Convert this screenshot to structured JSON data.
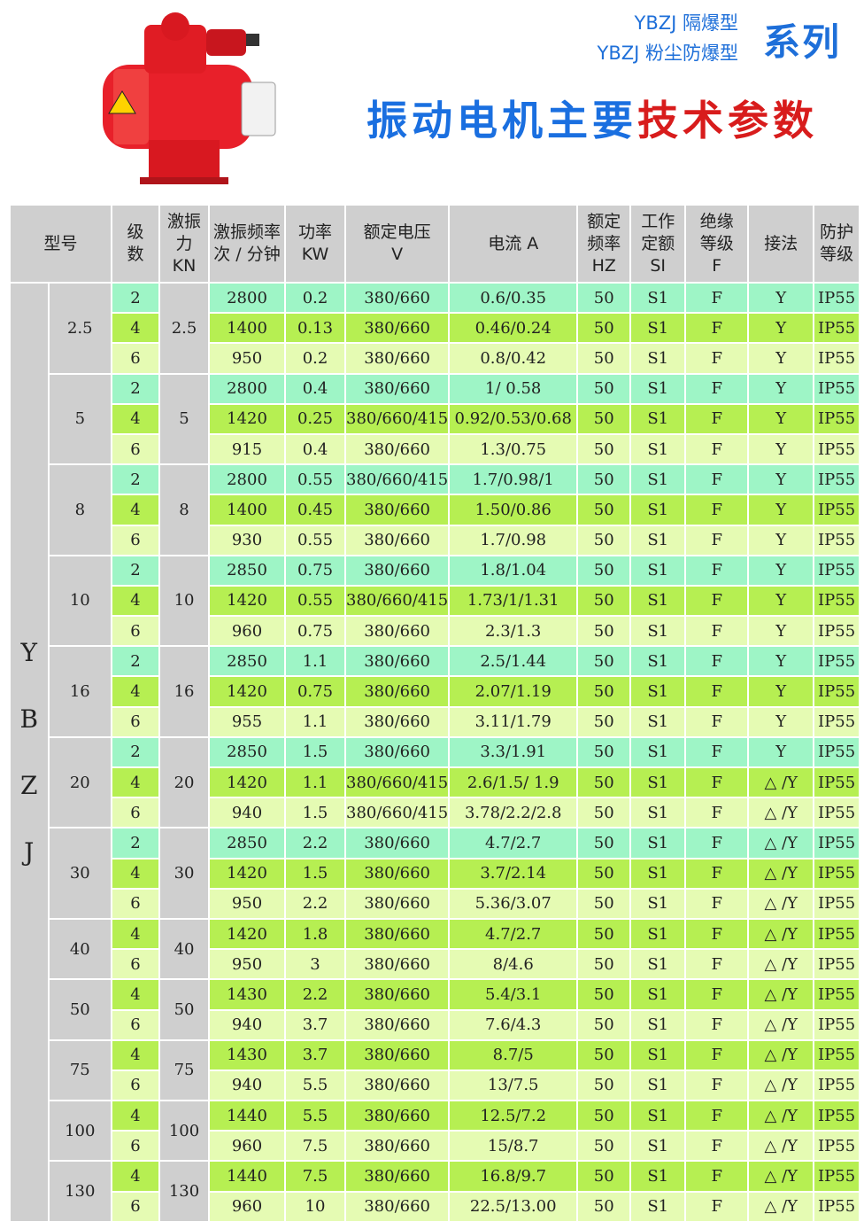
{
  "header": {
    "subtitle_1": "YBZJ 隔爆型",
    "subtitle_2": "YBZJ 粉尘防爆型",
    "series": "系列",
    "title_blue": "振动电机主要",
    "title_red": "技术参数"
  },
  "colors": {
    "blue": "#1a6fe0",
    "red": "#d81c1c",
    "pole2": "#9ef5c6",
    "pole4": "#b6ef52",
    "pole6": "#e5fbb3",
    "header": "#cfcfcf"
  },
  "table": {
    "columns": [
      "型号",
      "级\n数",
      "激振\n力\nKN",
      "激振频率\n次 / 分钟",
      "功率\nKW",
      "额定电压\nV",
      "电流 A",
      "额定\n频率\nHZ",
      "工作\n定额\nSI",
      "绝缘\n等级\nF",
      "接法",
      "防护\n等级"
    ],
    "model_letters": [
      "Y",
      "B",
      "Z",
      "J"
    ],
    "groups": [
      {
        "size": "2.5",
        "force": "2.5",
        "rows": [
          [
            "2",
            "2800",
            "0.2",
            "380/660",
            "0.6/0.35",
            "50",
            "S1",
            "F",
            "Y",
            "IP55"
          ],
          [
            "4",
            "1400",
            "0.13",
            "380/660",
            "0.46/0.24",
            "50",
            "S1",
            "F",
            "Y",
            "IP55"
          ],
          [
            "6",
            "950",
            "0.2",
            "380/660",
            "0.8/0.42",
            "50",
            "S1",
            "F",
            "Y",
            "IP55"
          ]
        ]
      },
      {
        "size": "5",
        "force": "5",
        "rows": [
          [
            "2",
            "2800",
            "0.4",
            "380/660",
            "1/ 0.58",
            "50",
            "S1",
            "F",
            "Y",
            "IP55"
          ],
          [
            "4",
            "1420",
            "0.25",
            "380/660/415",
            "0.92/0.53/0.68",
            "50",
            "S1",
            "F",
            "Y",
            "IP55"
          ],
          [
            "6",
            "915",
            "0.4",
            "380/660",
            "1.3/0.75",
            "50",
            "S1",
            "F",
            "Y",
            "IP55"
          ]
        ]
      },
      {
        "size": "8",
        "force": "8",
        "rows": [
          [
            "2",
            "2800",
            "0.55",
            "380/660/415",
            "1.7/0.98/1",
            "50",
            "S1",
            "F",
            "Y",
            "IP55"
          ],
          [
            "4",
            "1400",
            "0.45",
            "380/660",
            "1.50/0.86",
            "50",
            "S1",
            "F",
            "Y",
            "IP55"
          ],
          [
            "6",
            "930",
            "0.55",
            "380/660",
            "1.7/0.98",
            "50",
            "S1",
            "F",
            "Y",
            "IP55"
          ]
        ]
      },
      {
        "size": "10",
        "force": "10",
        "rows": [
          [
            "2",
            "2850",
            "0.75",
            "380/660",
            "1.8/1.04",
            "50",
            "S1",
            "F",
            "Y",
            "IP55"
          ],
          [
            "4",
            "1420",
            "0.55",
            "380/660/415",
            "1.73/1/1.31",
            "50",
            "S1",
            "F",
            "Y",
            "IP55"
          ],
          [
            "6",
            "960",
            "0.75",
            "380/660",
            "2.3/1.3",
            "50",
            "S1",
            "F",
            "Y",
            "IP55"
          ]
        ]
      },
      {
        "size": "16",
        "force": "16",
        "rows": [
          [
            "2",
            "2850",
            "1.1",
            "380/660",
            "2.5/1.44",
            "50",
            "S1",
            "F",
            "Y",
            "IP55"
          ],
          [
            "4",
            "1420",
            "0.75",
            "380/660",
            "2.07/1.19",
            "50",
            "S1",
            "F",
            "Y",
            "IP55"
          ],
          [
            "6",
            "955",
            "1.1",
            "380/660",
            "3.11/1.79",
            "50",
            "S1",
            "F",
            "Y",
            "IP55"
          ]
        ]
      },
      {
        "size": "20",
        "force": "20",
        "rows": [
          [
            "2",
            "2850",
            "1.5",
            "380/660",
            "3.3/1.91",
            "50",
            "S1",
            "F",
            "Y",
            "IP55"
          ],
          [
            "4",
            "1420",
            "1.1",
            "380/660/415",
            "2.6/1.5/ 1.9",
            "50",
            "S1",
            "F",
            "△ /Y",
            "IP55"
          ],
          [
            "6",
            "940",
            "1.5",
            "380/660/415",
            "3.78/2.2/2.8",
            "50",
            "S1",
            "F",
            "△ /Y",
            "IP55"
          ]
        ]
      },
      {
        "size": "30",
        "force": "30",
        "rows": [
          [
            "2",
            "2850",
            "2.2",
            "380/660",
            "4.7/2.7",
            "50",
            "S1",
            "F",
            "△ /Y",
            "IP55"
          ],
          [
            "4",
            "1420",
            "1.5",
            "380/660",
            "3.7/2.14",
            "50",
            "S1",
            "F",
            "△ /Y",
            "IP55"
          ],
          [
            "6",
            "950",
            "2.2",
            "380/660",
            "5.36/3.07",
            "50",
            "S1",
            "F",
            "△ /Y",
            "IP55"
          ]
        ]
      },
      {
        "size": "40",
        "force": "40",
        "rows": [
          [
            "4",
            "1420",
            "1.8",
            "380/660",
            "4.7/2.7",
            "50",
            "S1",
            "F",
            "△ /Y",
            "IP55"
          ],
          [
            "6",
            "950",
            "3",
            "380/660",
            "8/4.6",
            "50",
            "S1",
            "F",
            "△ /Y",
            "IP55"
          ]
        ]
      },
      {
        "size": "50",
        "force": "50",
        "rows": [
          [
            "4",
            "1430",
            "2.2",
            "380/660",
            "5.4/3.1",
            "50",
            "S1",
            "F",
            "△ /Y",
            "IP55"
          ],
          [
            "6",
            "940",
            "3.7",
            "380/660",
            "7.6/4.3",
            "50",
            "S1",
            "F",
            "△ /Y",
            "IP55"
          ]
        ]
      },
      {
        "size": "75",
        "force": "75",
        "rows": [
          [
            "4",
            "1430",
            "3.7",
            "380/660",
            "8.7/5",
            "50",
            "S1",
            "F",
            "△ /Y",
            "IP55"
          ],
          [
            "6",
            "940",
            "5.5",
            "380/660",
            "13/7.5",
            "50",
            "S1",
            "F",
            "△ /Y",
            "IP55"
          ]
        ]
      },
      {
        "size": "100",
        "force": "100",
        "rows": [
          [
            "4",
            "1440",
            "5.5",
            "380/660",
            "12.5/7.2",
            "50",
            "S1",
            "F",
            "△ /Y",
            "IP55"
          ],
          [
            "6",
            "960",
            "7.5",
            "380/660",
            "15/8.7",
            "50",
            "S1",
            "F",
            "△ /Y",
            "IP55"
          ]
        ]
      },
      {
        "size": "130",
        "force": "130",
        "rows": [
          [
            "4",
            "1440",
            "7.5",
            "380/660",
            "16.8/9.7",
            "50",
            "S1",
            "F",
            "△ /Y",
            "IP55"
          ],
          [
            "6",
            "960",
            "10",
            "380/660",
            "22.5/13.00",
            "50",
            "S1",
            "F",
            "△ /Y",
            "IP55"
          ]
        ]
      }
    ]
  }
}
